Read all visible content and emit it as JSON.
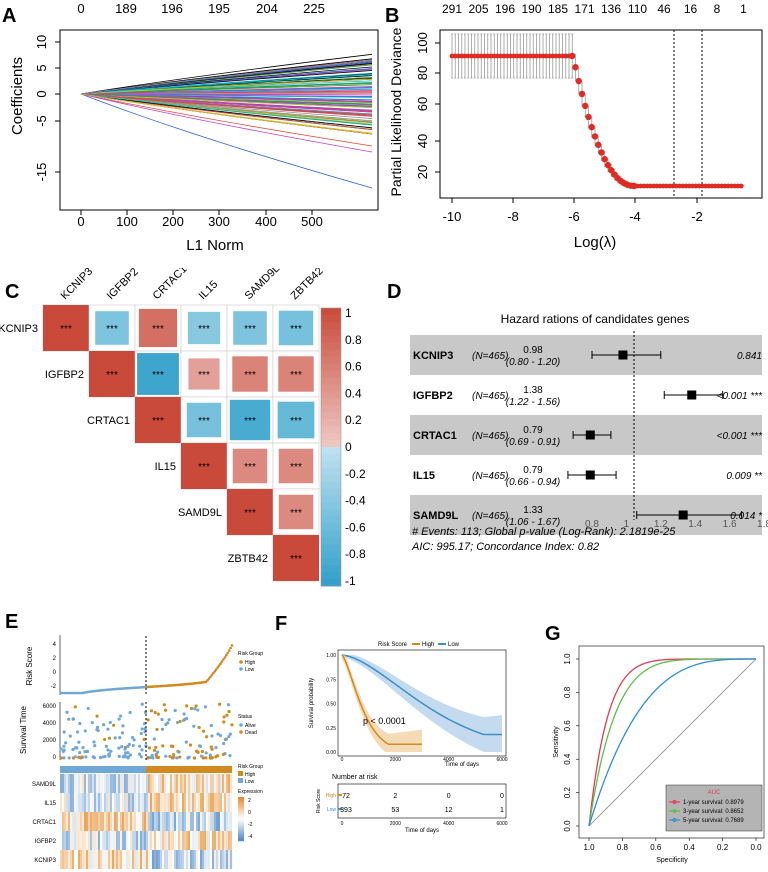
{
  "colors": {
    "corr_pos": "#c94a3a",
    "corr_neg": "#2f9fc9",
    "high": "#d08a1f",
    "low": "#3b8fc9",
    "forest_band": "#c8c8c8",
    "roc_1yr": "#e03d57",
    "roc_3yr": "#5cbf4a",
    "roc_5yr": "#2e8fd8"
  },
  "panel_a": {
    "label": "A",
    "top_axis": [
      "0",
      "189",
      "196",
      "195",
      "204",
      "225"
    ],
    "y_title": "Coefficients",
    "x_title": "L1 Norm",
    "y_ticks": [
      "10",
      "5",
      "0",
      "-5",
      "-15"
    ],
    "x_ticks": [
      "0",
      "100",
      "200",
      "300",
      "400",
      "500"
    ]
  },
  "panel_b": {
    "label": "B",
    "top_axis": [
      "291",
      "205",
      "196",
      "190",
      "185",
      "171",
      "136",
      "110",
      "46",
      "16",
      "8",
      "1"
    ],
    "y_title": "Partial Likelihood Deviance",
    "x_title": "Log(λ)",
    "y_ticks": [
      "100",
      "80",
      "60",
      "40",
      "20"
    ],
    "x_ticks": [
      "-10",
      "-8",
      "-6",
      "-4",
      "-2"
    ]
  },
  "panel_c": {
    "label": "C",
    "genes": [
      "KCNIP3",
      "IGFBP2",
      "CRTAC1",
      "IL15",
      "SAMD9L",
      "ZBTB42"
    ],
    "stars": "***",
    "legend_ticks": [
      "1",
      "0.8",
      "0.6",
      "0.4",
      "0.2",
      "0",
      "-0.2",
      "-0.4",
      "-0.6",
      "-0.8",
      "-1"
    ]
  },
  "panel_d": {
    "label": "D",
    "title": "Hazard rations of candidates genes",
    "rows": [
      {
        "gene": "KCNIP3",
        "n": "(N=465)",
        "hr": "0.98",
        "ci": "(0.80 - 1.20)",
        "p": "0.841"
      },
      {
        "gene": "IGFBP2",
        "n": "(N=465)",
        "hr": "1.38",
        "ci": "(1.22 - 1.56)",
        "p": "<0.001 ***"
      },
      {
        "gene": "CRTAC1",
        "n": "(N=465)",
        "hr": "0.79",
        "ci": "(0.69 - 0.91)",
        "p": "<0.001 ***"
      },
      {
        "gene": "IL15",
        "n": "(N=465)",
        "hr": "0.79",
        "ci": "(0.66 - 0.94)",
        "p": "0.009 **"
      },
      {
        "gene": "SAMD9L",
        "n": "(N=465)",
        "hr": "1.33",
        "ci": "(1.06 - 1.67)",
        "p": "0.014 *"
      }
    ],
    "x_ticks": [
      "0.8",
      "1",
      "1.2",
      "1.4",
      "1.6",
      "1.8"
    ],
    "footnote1": "# Events: 113; Global p-value (Log-Rank): 2.1819e-25",
    "footnote2": "AIC: 995.17; Concordance Index: 0.82"
  },
  "panel_e": {
    "label": "E",
    "risk_title": "Risk Score",
    "risk_legend_title": "Risk Group",
    "risk_legend": [
      "High",
      "Low"
    ],
    "risk_ticks": [
      "4",
      "2",
      "0",
      "-2"
    ],
    "surv_title": "Survival Time",
    "surv_ticks": [
      "6000",
      "4000",
      "2000",
      "0"
    ],
    "status_title": "Status",
    "status_legend": [
      "Alive",
      "Dead"
    ],
    "group_title": "Risk Group",
    "group_legend": [
      "High",
      "Low"
    ],
    "expr_title": "Expression",
    "expr_ticks": [
      "2",
      "0",
      "-2",
      "-4"
    ],
    "genes": [
      "SAMD9L",
      "IL15",
      "CRTAC1",
      "IGFBP2",
      "KCNIP3"
    ]
  },
  "panel_f": {
    "label": "F",
    "legend_title": "Risk Score",
    "legend": [
      "High",
      "Low"
    ],
    "y_title": "Survival probability",
    "y_ticks": [
      "1.00",
      "0.75",
      "0.50",
      "0.25",
      "0.00"
    ],
    "x_title": "Time of days",
    "x_ticks": [
      "0",
      "2000",
      "4000",
      "6000"
    ],
    "pvalue": "p < 0.0001",
    "risk_table_title": "Number at risk",
    "risk_table_y": "Risk Score",
    "risk_rows": [
      {
        "group": "High",
        "values": [
          "72",
          "2",
          "0",
          "0"
        ]
      },
      {
        "group": "Low",
        "values": [
          "393",
          "53",
          "12",
          "1"
        ]
      }
    ],
    "risk_x_title": "Time of days"
  },
  "panel_g": {
    "label": "G",
    "y_title": "Sensitivity",
    "x_title": "Specificity",
    "y_ticks": [
      "1.0",
      "0.8",
      "0.6",
      "0.4",
      "0.2",
      "0.0"
    ],
    "x_ticks": [
      "1.0",
      "0.8",
      "0.6",
      "0.4",
      "0.2",
      "0.0"
    ],
    "legend_title": "AUC",
    "legend": [
      "1-year survival: 0.8979",
      "3-year survival: 0.8652",
      "5-year survival: 0.7689"
    ]
  }
}
